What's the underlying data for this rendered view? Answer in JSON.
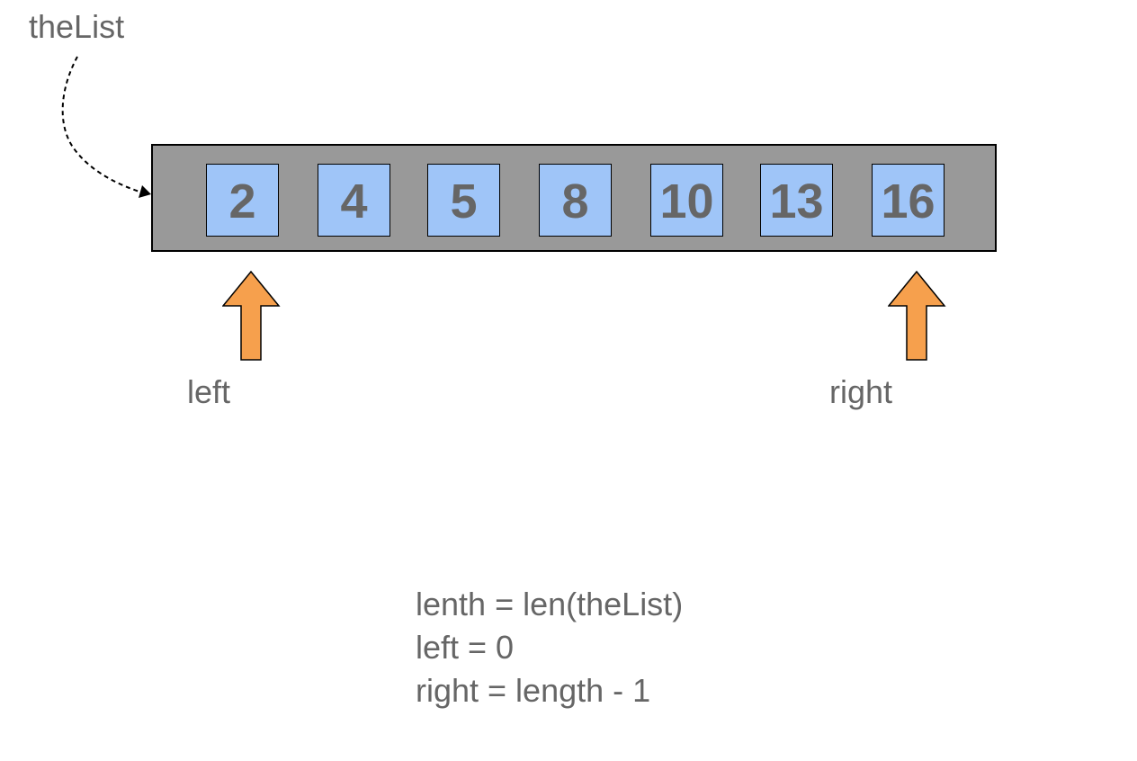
{
  "list_label": "theList",
  "array": {
    "values": [
      "2",
      "4",
      "5",
      "8",
      "10",
      "13",
      "16"
    ]
  },
  "pointers": {
    "left": "left",
    "right": "right"
  },
  "colors": {
    "container": "#999999",
    "cell": "#9fc5f8",
    "arrow": "#f6a04d",
    "text": "#666666"
  },
  "code": {
    "lines": [
      "lenth = len(theList)",
      "left = 0",
      "right = length - 1"
    ]
  }
}
